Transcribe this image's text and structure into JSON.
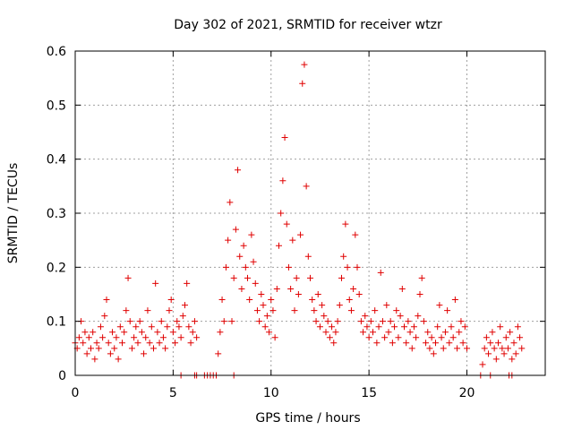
{
  "chart_data": {
    "type": "scatter",
    "title": "Day 302 of 2021, SRMTID for receiver wtzr",
    "xlabel": "GPS time / hours",
    "ylabel": "SRMTID / TECUs",
    "xlim": [
      0,
      24
    ],
    "ylim": [
      0,
      0.6
    ],
    "xticks": [
      0,
      5,
      10,
      15,
      20
    ],
    "xtick_labels": [
      "0",
      "5",
      "10",
      "15",
      "20"
    ],
    "yticks": [
      0,
      0.1,
      0.2,
      0.3,
      0.4,
      0.5,
      0.6
    ],
    "ytick_labels": [
      "0",
      "0.1",
      "0.2",
      "0.3",
      "0.4",
      "0.5",
      "0.6"
    ],
    "grid": true,
    "marker": "plus",
    "color": "#e00000",
    "series": [
      {
        "name": "SRMTID",
        "points": [
          [
            0.0,
            0.06
          ],
          [
            0.1,
            0.05
          ],
          [
            0.2,
            0.07
          ],
          [
            0.3,
            0.1
          ],
          [
            0.4,
            0.06
          ],
          [
            0.5,
            0.08
          ],
          [
            0.6,
            0.04
          ],
          [
            0.7,
            0.07
          ],
          [
            0.8,
            0.05
          ],
          [
            0.9,
            0.08
          ],
          [
            1.0,
            0.03
          ],
          [
            1.1,
            0.06
          ],
          [
            1.2,
            0.05
          ],
          [
            1.3,
            0.09
          ],
          [
            1.4,
            0.07
          ],
          [
            1.5,
            0.11
          ],
          [
            1.6,
            0.14
          ],
          [
            1.7,
            0.06
          ],
          [
            1.8,
            0.04
          ],
          [
            1.9,
            0.08
          ],
          [
            2.0,
            0.05
          ],
          [
            2.1,
            0.07
          ],
          [
            2.2,
            0.03
          ],
          [
            2.3,
            0.09
          ],
          [
            2.4,
            0.06
          ],
          [
            2.5,
            0.08
          ],
          [
            2.6,
            0.12
          ],
          [
            2.7,
            0.18
          ],
          [
            2.8,
            0.1
          ],
          [
            2.9,
            0.05
          ],
          [
            3.0,
            0.07
          ],
          [
            3.1,
            0.09
          ],
          [
            3.2,
            0.06
          ],
          [
            3.3,
            0.1
          ],
          [
            3.4,
            0.08
          ],
          [
            3.5,
            0.04
          ],
          [
            3.6,
            0.07
          ],
          [
            3.7,
            0.12
          ],
          [
            3.8,
            0.06
          ],
          [
            3.9,
            0.09
          ],
          [
            4.0,
            0.05
          ],
          [
            4.1,
            0.17
          ],
          [
            4.2,
            0.08
          ],
          [
            4.3,
            0.06
          ],
          [
            4.4,
            0.1
          ],
          [
            4.5,
            0.07
          ],
          [
            4.6,
            0.05
          ],
          [
            4.7,
            0.09
          ],
          [
            4.8,
            0.12
          ],
          [
            4.9,
            0.14
          ],
          [
            5.0,
            0.08
          ],
          [
            5.1,
            0.06
          ],
          [
            5.2,
            0.1
          ],
          [
            5.3,
            0.09
          ],
          [
            5.4,
            0.07
          ],
          [
            5.5,
            0.11
          ],
          [
            5.6,
            0.13
          ],
          [
            5.7,
            0.17
          ],
          [
            5.8,
            0.09
          ],
          [
            5.9,
            0.06
          ],
          [
            6.0,
            0.08
          ],
          [
            6.1,
            0.1
          ],
          [
            6.2,
            0.07
          ],
          [
            7.3,
            0.04
          ],
          [
            7.4,
            0.08
          ],
          [
            7.5,
            0.14
          ],
          [
            7.6,
            0.1
          ],
          [
            7.7,
            0.2
          ],
          [
            7.8,
            0.25
          ],
          [
            7.9,
            0.32
          ],
          [
            8.0,
            0.1
          ],
          [
            8.1,
            0.18
          ],
          [
            8.2,
            0.27
          ],
          [
            8.3,
            0.38
          ],
          [
            8.4,
            0.22
          ],
          [
            8.5,
            0.16
          ],
          [
            8.6,
            0.24
          ],
          [
            8.7,
            0.2
          ],
          [
            8.8,
            0.18
          ],
          [
            8.9,
            0.14
          ],
          [
            9.0,
            0.26
          ],
          [
            9.1,
            0.21
          ],
          [
            9.2,
            0.17
          ],
          [
            9.3,
            0.12
          ],
          [
            9.4,
            0.1
          ],
          [
            9.5,
            0.15
          ],
          [
            9.6,
            0.13
          ],
          [
            9.7,
            0.09
          ],
          [
            9.8,
            0.11
          ],
          [
            9.9,
            0.08
          ],
          [
            10.0,
            0.14
          ],
          [
            10.1,
            0.12
          ],
          [
            10.2,
            0.07
          ],
          [
            10.3,
            0.16
          ],
          [
            10.4,
            0.24
          ],
          [
            10.5,
            0.3
          ],
          [
            10.6,
            0.36
          ],
          [
            10.7,
            0.44
          ],
          [
            10.8,
            0.28
          ],
          [
            10.9,
            0.2
          ],
          [
            11.0,
            0.16
          ],
          [
            11.1,
            0.25
          ],
          [
            11.2,
            0.12
          ],
          [
            11.3,
            0.18
          ],
          [
            11.4,
            0.15
          ],
          [
            11.5,
            0.26
          ],
          [
            11.6,
            0.54
          ],
          [
            11.7,
            0.575
          ],
          [
            11.8,
            0.35
          ],
          [
            11.9,
            0.22
          ],
          [
            12.0,
            0.18
          ],
          [
            12.1,
            0.14
          ],
          [
            12.2,
            0.12
          ],
          [
            12.3,
            0.1
          ],
          [
            12.4,
            0.15
          ],
          [
            12.5,
            0.09
          ],
          [
            12.6,
            0.13
          ],
          [
            12.7,
            0.11
          ],
          [
            12.8,
            0.08
          ],
          [
            12.9,
            0.1
          ],
          [
            13.0,
            0.07
          ],
          [
            13.1,
            0.09
          ],
          [
            13.2,
            0.06
          ],
          [
            13.3,
            0.08
          ],
          [
            13.4,
            0.1
          ],
          [
            13.5,
            0.13
          ],
          [
            13.6,
            0.18
          ],
          [
            13.7,
            0.22
          ],
          [
            13.8,
            0.28
          ],
          [
            13.9,
            0.2
          ],
          [
            14.0,
            0.14
          ],
          [
            14.1,
            0.12
          ],
          [
            14.2,
            0.16
          ],
          [
            14.3,
            0.26
          ],
          [
            14.4,
            0.2
          ],
          [
            14.5,
            0.15
          ],
          [
            14.6,
            0.1
          ],
          [
            14.7,
            0.08
          ],
          [
            14.8,
            0.11
          ],
          [
            14.9,
            0.09
          ],
          [
            15.0,
            0.07
          ],
          [
            15.1,
            0.1
          ],
          [
            15.2,
            0.08
          ],
          [
            15.3,
            0.12
          ],
          [
            15.4,
            0.06
          ],
          [
            15.5,
            0.09
          ],
          [
            15.6,
            0.19
          ],
          [
            15.7,
            0.1
          ],
          [
            15.8,
            0.07
          ],
          [
            15.9,
            0.13
          ],
          [
            16.0,
            0.08
          ],
          [
            16.1,
            0.1
          ],
          [
            16.2,
            0.06
          ],
          [
            16.3,
            0.09
          ],
          [
            16.4,
            0.12
          ],
          [
            16.5,
            0.07
          ],
          [
            16.6,
            0.11
          ],
          [
            16.7,
            0.16
          ],
          [
            16.8,
            0.09
          ],
          [
            16.9,
            0.06
          ],
          [
            17.0,
            0.1
          ],
          [
            17.1,
            0.08
          ],
          [
            17.2,
            0.05
          ],
          [
            17.3,
            0.09
          ],
          [
            17.4,
            0.07
          ],
          [
            17.5,
            0.11
          ],
          [
            17.6,
            0.15
          ],
          [
            17.7,
            0.18
          ],
          [
            17.8,
            0.1
          ],
          [
            17.9,
            0.06
          ],
          [
            18.0,
            0.08
          ],
          [
            18.1,
            0.05
          ],
          [
            18.2,
            0.07
          ],
          [
            18.3,
            0.04
          ],
          [
            18.4,
            0.06
          ],
          [
            18.5,
            0.09
          ],
          [
            18.6,
            0.13
          ],
          [
            18.7,
            0.07
          ],
          [
            18.8,
            0.05
          ],
          [
            18.9,
            0.08
          ],
          [
            19.0,
            0.12
          ],
          [
            19.1,
            0.06
          ],
          [
            19.2,
            0.09
          ],
          [
            19.3,
            0.07
          ],
          [
            19.4,
            0.14
          ],
          [
            19.5,
            0.05
          ],
          [
            19.6,
            0.08
          ],
          [
            19.7,
            0.1
          ],
          [
            19.8,
            0.06
          ],
          [
            19.9,
            0.09
          ],
          [
            20.0,
            0.05
          ],
          [
            20.8,
            0.02
          ],
          [
            20.9,
            0.05
          ],
          [
            21.0,
            0.07
          ],
          [
            21.1,
            0.04
          ],
          [
            21.2,
            0.06
          ],
          [
            21.3,
            0.08
          ],
          [
            21.4,
            0.05
          ],
          [
            21.5,
            0.03
          ],
          [
            21.6,
            0.06
          ],
          [
            21.7,
            0.09
          ],
          [
            21.8,
            0.05
          ],
          [
            21.9,
            0.04
          ],
          [
            22.0,
            0.07
          ],
          [
            22.1,
            0.05
          ],
          [
            22.2,
            0.08
          ],
          [
            22.3,
            0.03
          ],
          [
            22.4,
            0.06
          ],
          [
            22.5,
            0.04
          ],
          [
            22.6,
            0.09
          ],
          [
            22.7,
            0.07
          ],
          [
            22.8,
            0.05
          ],
          [
            5.4,
            0.0
          ],
          [
            6.1,
            0.0
          ],
          [
            6.2,
            0.0
          ],
          [
            6.6,
            0.0
          ],
          [
            6.75,
            0.0
          ],
          [
            6.9,
            0.0
          ],
          [
            7.05,
            0.0
          ],
          [
            7.2,
            0.0
          ],
          [
            8.1,
            0.0
          ],
          [
            20.7,
            0.0
          ],
          [
            21.2,
            0.0
          ],
          [
            22.15,
            0.0
          ],
          [
            22.3,
            0.0
          ]
        ]
      }
    ]
  }
}
